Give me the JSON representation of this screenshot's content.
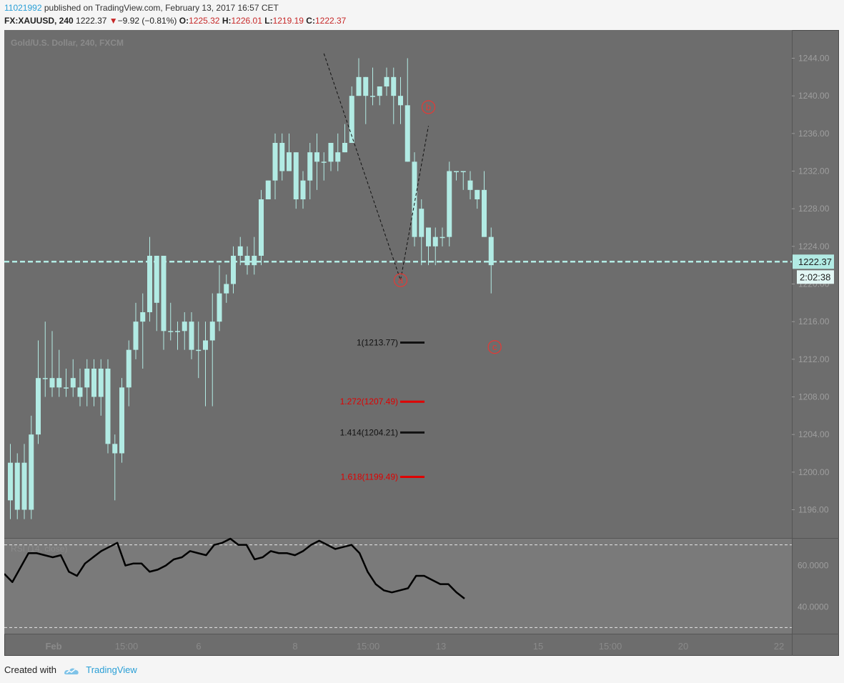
{
  "header": {
    "chart_id": "11021992",
    "published_text": "published on TradingView.com, February 13, 2017 16:57 CET",
    "symbol": "FX:XAUUSD, 240",
    "last": "1222.37",
    "change": "−9.92 (−0.81%)",
    "o_label": "O:",
    "o_value": "1225.32",
    "h_label": "H:",
    "h_value": "1226.01",
    "l_label": "L:",
    "l_value": "1219.19",
    "c_label": "C:",
    "c_value": "1222.37"
  },
  "chart_data": {
    "type": "candlestick",
    "title": "Gold/U.S. Dollar, 240, FXCM",
    "ylim": [
      1193,
      1247
    ],
    "y_ticks": [
      "1244.00",
      "1240.00",
      "1236.00",
      "1232.00",
      "1228.00",
      "1224.00",
      "1220.00",
      "1216.00",
      "1212.00",
      "1208.00",
      "1204.00",
      "1200.00",
      "1196.00"
    ],
    "x_ticks": [
      "Feb",
      "15:00",
      "6",
      "8",
      "15:00",
      "13",
      "15",
      "15:00",
      "20",
      "22"
    ],
    "current_price": "1222.37",
    "countdown": "2:02:38",
    "candles": [
      {
        "o": 1197,
        "c": 1201,
        "h": 1203,
        "l": 1195
      },
      {
        "o": 1196,
        "c": 1201,
        "h": 1202,
        "l": 1195
      },
      {
        "o": 1201,
        "c": 1196,
        "h": 1203,
        "l": 1195
      },
      {
        "o": 1196,
        "c": 1204,
        "h": 1206,
        "l": 1195
      },
      {
        "o": 1204,
        "c": 1210,
        "h": 1214,
        "l": 1203
      },
      {
        "o": 1210,
        "c": 1210,
        "h": 1216,
        "l": 1208
      },
      {
        "o": 1210,
        "c": 1209,
        "h": 1215,
        "l": 1208
      },
      {
        "o": 1209,
        "c": 1210,
        "h": 1213,
        "l": 1208
      },
      {
        "o": 1209,
        "c": 1209,
        "h": 1211,
        "l": 1208
      },
      {
        "o": 1209,
        "c": 1210,
        "h": 1212,
        "l": 1208
      },
      {
        "o": 1208,
        "c": 1209,
        "h": 1211,
        "l": 1207
      },
      {
        "o": 1209,
        "c": 1211,
        "h": 1212,
        "l": 1207
      },
      {
        "o": 1211,
        "c": 1208,
        "h": 1212,
        "l": 1207
      },
      {
        "o": 1208,
        "c": 1211,
        "h": 1212,
        "l": 1206
      },
      {
        "o": 1211,
        "c": 1203,
        "h": 1212,
        "l": 1202
      },
      {
        "o": 1203,
        "c": 1202,
        "h": 1204,
        "l": 1197
      },
      {
        "o": 1202,
        "c": 1209,
        "h": 1210,
        "l": 1201
      },
      {
        "o": 1209,
        "c": 1213,
        "h": 1214,
        "l": 1207
      },
      {
        "o": 1213,
        "c": 1216,
        "h": 1218,
        "l": 1212
      },
      {
        "o": 1216,
        "c": 1217,
        "h": 1219,
        "l": 1211
      },
      {
        "o": 1217,
        "c": 1223,
        "h": 1225,
        "l": 1216
      },
      {
        "o": 1218,
        "c": 1223,
        "h": 1223,
        "l": 1215
      },
      {
        "o": 1223,
        "c": 1215,
        "h": 1223,
        "l": 1213
      },
      {
        "o": 1215,
        "c": 1215,
        "h": 1218,
        "l": 1214
      },
      {
        "o": 1215,
        "c": 1215,
        "h": 1216,
        "l": 1213
      },
      {
        "o": 1215,
        "c": 1216,
        "h": 1217,
        "l": 1213
      },
      {
        "o": 1216,
        "c": 1213,
        "h": 1217,
        "l": 1212
      },
      {
        "o": 1213,
        "c": 1213,
        "h": 1216,
        "l": 1210
      },
      {
        "o": 1213,
        "c": 1214,
        "h": 1216,
        "l": 1207
      },
      {
        "o": 1214,
        "c": 1216,
        "h": 1219,
        "l": 1207
      },
      {
        "o": 1216,
        "c": 1219,
        "h": 1222,
        "l": 1215
      },
      {
        "o": 1219,
        "c": 1220,
        "h": 1221,
        "l": 1218
      },
      {
        "o": 1220,
        "c": 1223,
        "h": 1224,
        "l": 1219
      },
      {
        "o": 1223,
        "c": 1224,
        "h": 1225,
        "l": 1222
      },
      {
        "o": 1223,
        "c": 1222,
        "h": 1224,
        "l": 1221
      },
      {
        "o": 1222,
        "c": 1223,
        "h": 1225,
        "l": 1221
      },
      {
        "o": 1223,
        "c": 1229,
        "h": 1230,
        "l": 1222
      },
      {
        "o": 1229,
        "c": 1231,
        "h": 1231,
        "l": 1229
      },
      {
        "o": 1231,
        "c": 1235,
        "h": 1236,
        "l": 1229
      },
      {
        "o": 1235,
        "c": 1232,
        "h": 1236,
        "l": 1231
      },
      {
        "o": 1232,
        "c": 1234,
        "h": 1236,
        "l": 1232
      },
      {
        "o": 1234,
        "c": 1229,
        "h": 1234,
        "l": 1228
      },
      {
        "o": 1229,
        "c": 1231,
        "h": 1232,
        "l": 1228
      },
      {
        "o": 1231,
        "c": 1234,
        "h": 1235,
        "l": 1229
      },
      {
        "o": 1234,
        "c": 1233,
        "h": 1236,
        "l": 1230
      },
      {
        "o": 1233,
        "c": 1233,
        "h": 1234,
        "l": 1231
      },
      {
        "o": 1233,
        "c": 1235,
        "h": 1235,
        "l": 1232
      },
      {
        "o": 1233,
        "c": 1234,
        "h": 1236,
        "l": 1232
      },
      {
        "o": 1234,
        "c": 1235,
        "h": 1237,
        "l": 1234
      },
      {
        "o": 1235,
        "c": 1240,
        "h": 1241,
        "l": 1235
      },
      {
        "o": 1240,
        "c": 1242,
        "h": 1244,
        "l": 1240
      },
      {
        "o": 1242,
        "c": 1240,
        "h": 1242,
        "l": 1237
      },
      {
        "o": 1240,
        "c": 1240,
        "h": 1243,
        "l": 1239
      },
      {
        "o": 1240,
        "c": 1241,
        "h": 1241,
        "l": 1239
      },
      {
        "o": 1241,
        "c": 1242,
        "h": 1243,
        "l": 1240
      },
      {
        "o": 1242,
        "c": 1240,
        "h": 1243,
        "l": 1237
      },
      {
        "o": 1240,
        "c": 1239,
        "h": 1242,
        "l": 1237
      },
      {
        "o": 1239,
        "c": 1233,
        "h": 1244,
        "l": 1233
      },
      {
        "o": 1233,
        "c": 1225,
        "h": 1234,
        "l": 1224
      },
      {
        "o": 1225,
        "c": 1228,
        "h": 1229,
        "l": 1222
      },
      {
        "o": 1226,
        "c": 1224,
        "h": 1226,
        "l": 1222
      },
      {
        "o": 1224,
        "c": 1225,
        "h": 1226,
        "l": 1222
      },
      {
        "o": 1225,
        "c": 1225,
        "h": 1226,
        "l": 1224
      },
      {
        "o": 1225,
        "c": 1232,
        "h": 1233,
        "l": 1224
      },
      {
        "o": 1232,
        "c": 1232,
        "h": 1232,
        "l": 1231
      },
      {
        "o": 1232,
        "c": 1232,
        "h": 1232,
        "l": 1230
      },
      {
        "o": 1231,
        "c": 1230,
        "h": 1232,
        "l": 1229
      },
      {
        "o": 1230,
        "c": 1229,
        "h": 1230,
        "l": 1228
      },
      {
        "o": 1230,
        "c": 1225,
        "h": 1232,
        "l": 1225
      },
      {
        "o": 1225,
        "c": 1222,
        "h": 1226,
        "l": 1219
      }
    ],
    "pattern_labels": [
      {
        "label": "a",
        "price": 1220.4
      },
      {
        "label": "b",
        "price": 1238.8
      },
      {
        "label": "c",
        "price": 1213.3
      }
    ],
    "fib_levels": [
      {
        "label": "1(1213.77)",
        "price": 1213.77,
        "color": "#111111"
      },
      {
        "label": "1.272(1207.49)",
        "price": 1207.49,
        "color": "#e00000"
      },
      {
        "label": "1.414(1204.21)",
        "price": 1204.21,
        "color": "#111111"
      },
      {
        "label": "1.618(1199.49)",
        "price": 1199.49,
        "color": "#e00000"
      }
    ],
    "rsi": {
      "label": "RSI (14, close)",
      "ylim": [
        27,
        73
      ],
      "ticks": [
        "60.0000",
        "40.0000"
      ],
      "bands": [
        30,
        70
      ],
      "values": [
        56,
        52,
        59,
        66,
        66,
        65,
        64,
        65,
        57,
        55,
        61,
        64,
        67,
        69,
        71,
        60,
        61,
        61,
        57,
        58,
        60,
        63,
        64,
        67,
        66,
        65,
        70,
        71,
        73,
        70,
        70,
        63,
        64,
        67,
        66,
        66,
        65,
        67,
        70,
        72,
        70,
        68,
        69,
        70,
        66,
        57,
        51,
        48,
        47,
        48,
        49,
        55,
        55,
        53,
        51,
        51,
        47,
        44
      ]
    },
    "colors": {
      "candle": "#b2ebe4",
      "background": "#6d6d6d",
      "price_line": "#b2ebe4",
      "pattern_marker": "#e53935",
      "rsi_line": "#000000"
    }
  },
  "footer": {
    "created_with": "Created with",
    "brand": "TradingView"
  }
}
